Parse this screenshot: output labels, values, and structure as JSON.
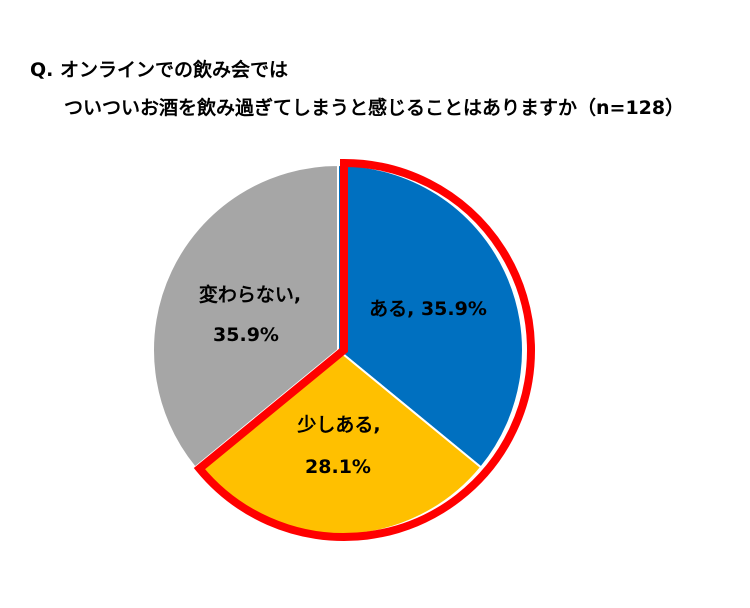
{
  "chart_data": {
    "type": "pie",
    "title_line_1": "Q. オンラインでの飲み会では",
    "title_line_2": "ついついお酒を飲み過ぎてしまうと感じることはありますか（n=128）",
    "slices": [
      {
        "name": "ある",
        "value": 35.9,
        "color": "#0070C0",
        "label_line_1": "ある, 35.9%",
        "label_line_2": ""
      },
      {
        "name": "少しある",
        "value": 28.1,
        "color": "#FFC000",
        "label_line_1": "少しある,",
        "label_line_2": "28.1%"
      },
      {
        "name": "変わらない",
        "value": 35.9,
        "color": "#A6A6A6",
        "label_line_1": "変わらない,",
        "label_line_2": "35.9%"
      }
    ],
    "highlight": {
      "slices": [
        "ある",
        "少しある"
      ],
      "outline_color": "#FF0000"
    },
    "slice_border_color": "#FFFFFF",
    "legend": "none"
  }
}
